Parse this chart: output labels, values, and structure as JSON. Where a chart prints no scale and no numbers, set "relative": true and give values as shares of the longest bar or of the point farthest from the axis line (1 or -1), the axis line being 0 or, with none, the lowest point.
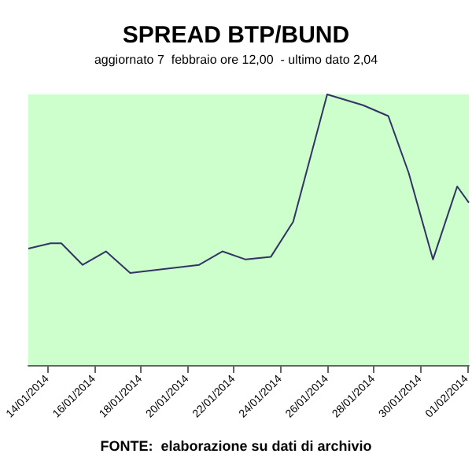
{
  "chart_data": {
    "type": "line",
    "title": "SPREAD BTP/BUND",
    "subtitle": "aggiornato 7  febbraio ore 12,00  - ultimo dato 2,04",
    "annotations": [
      "FONTE:  elaborazione su dati di archivio"
    ],
    "relative": true,
    "marker": "none",
    "line_style": "solid",
    "xlim": [
      "2014-01-13T04:00",
      "2014-02-01T02:00"
    ],
    "xticks": [
      {
        "value": "2014-01-14",
        "label": "14/01/2014"
      },
      {
        "value": "2014-01-16",
        "label": "16/01/2014"
      },
      {
        "value": "2014-01-18",
        "label": "18/01/2014"
      },
      {
        "value": "2014-01-20",
        "label": "20/01/2014"
      },
      {
        "value": "2014-01-22",
        "label": "22/01/2014"
      },
      {
        "value": "2014-01-24",
        "label": "24/01/2014"
      },
      {
        "value": "2014-01-26",
        "label": "26/01/2014"
      },
      {
        "value": "2014-01-28",
        "label": "28/01/2014"
      },
      {
        "value": "2014-01-30",
        "label": "30/01/2014"
      },
      {
        "value": "2014-02-01",
        "label": "01/02/2014"
      }
    ],
    "series": [
      {
        "color": "#333366",
        "x": [
          "2014-01-13T04:00",
          "2014-01-14T03:00",
          "2014-01-14T14:00",
          "2014-01-15T12:00",
          "2014-01-16T12:00",
          "2014-01-17T13:00",
          "2014-01-20T12:00",
          "2014-01-21T12:00",
          "2014-01-22T12:00",
          "2014-01-23T14:00",
          "2014-01-24T13:00",
          "2014-01-26T00:00",
          "2014-01-27T13:00",
          "2014-01-28T15:00",
          "2014-01-29T12:00",
          "2014-01-30T13:00",
          "2014-01-31T14:00",
          "2014-02-01T02:00"
        ],
        "values": [
          0.43,
          0.45,
          0.45,
          0.37,
          0.42,
          0.34,
          0.37,
          0.42,
          0.39,
          0.4,
          0.53,
          1.0,
          0.96,
          0.92,
          0.71,
          0.39,
          0.66,
          0.6
        ]
      }
    ]
  }
}
